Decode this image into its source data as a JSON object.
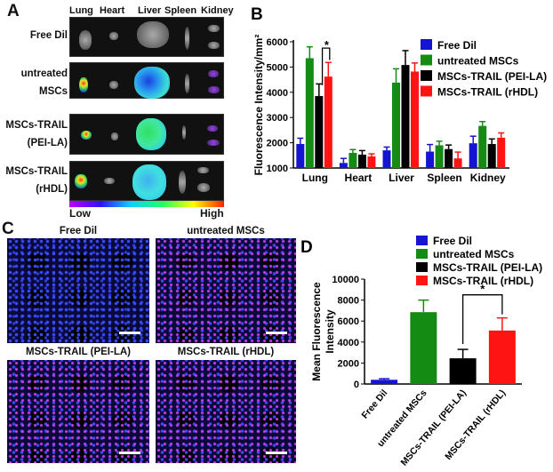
{
  "panels": {
    "a": "A",
    "b": "B",
    "c": "C",
    "d": "D"
  },
  "panel_a": {
    "organs": [
      "Lung",
      "Heart",
      "Liver",
      "Spleen",
      "Kidney"
    ],
    "rows": [
      {
        "l1": "Free Dil",
        "l2": ""
      },
      {
        "l1": "untreated",
        "l2": "MSCs"
      },
      {
        "l1": "MSCs-TRAIL",
        "l2": "(PEI-LA)"
      },
      {
        "l1": "MSCs-TRAIL",
        "l2": "(rHDL)"
      }
    ],
    "scale_low": "Low",
    "scale_high": "High"
  },
  "panel_c": {
    "labels": [
      "Free Dil",
      "untreated MSCs",
      "MSCs-TRAIL (PEI-LA)",
      "MSCs-TRAIL (rHDL)"
    ]
  },
  "colors": {
    "Free Dil": "#1414d2",
    "untreated MSCs": "#148c14",
    "MSCs-TRAIL (PEI-LA)": "#000000",
    "MSCs-TRAIL (rHDL)": "#ff1414"
  },
  "chart_data": [
    {
      "type": "bar",
      "panel": "B",
      "ylabel": "Fluorescence Intensity/mm²",
      "ylim": [
        1000,
        6000
      ],
      "yticks": [
        "1000",
        "2000",
        "3000",
        "4000",
        "5000",
        "6000"
      ],
      "categories": [
        "Lung",
        "Heart",
        "Liver",
        "Spleen",
        "Kidney"
      ],
      "legend": "top-right",
      "series": [
        {
          "name": "Free Dil",
          "values": [
            1950,
            1200,
            1700,
            1650,
            1980
          ],
          "errors": [
            230,
            180,
            130,
            280,
            280
          ]
        },
        {
          "name": "untreated MSCs",
          "values": [
            5350,
            1600,
            4380,
            1900,
            2670
          ],
          "errors": [
            450,
            130,
            550,
            160,
            170
          ]
        },
        {
          "name": "MSCs-TRAIL (PEI-LA)",
          "values": [
            3850,
            1530,
            5080,
            1750,
            1950
          ],
          "errors": [
            480,
            160,
            570,
            160,
            200
          ]
        },
        {
          "name": "MSCs-TRAIL (rHDL)",
          "values": [
            4620,
            1460,
            4820,
            1380,
            2200
          ],
          "errors": [
            560,
            100,
            340,
            250,
            190
          ]
        }
      ],
      "annotation": "*"
    },
    {
      "type": "bar",
      "panel": "D",
      "ylabel": "Mean Fluorescence Intensity",
      "ylim": [
        0,
        10000
      ],
      "yticks": [
        "0",
        "2000",
        "4000",
        "6000",
        "8000",
        "10000"
      ],
      "categories": [
        "Free Dil",
        "untreated MSCs",
        "MSCs-TRAIL (PEI-LA)",
        "MSCs-TRAIL (rHDL)"
      ],
      "legend": "top",
      "values": [
        400,
        6850,
        2450,
        5100
      ],
      "errors": [
        100,
        1150,
        850,
        1200
      ],
      "annotation": "*"
    }
  ]
}
